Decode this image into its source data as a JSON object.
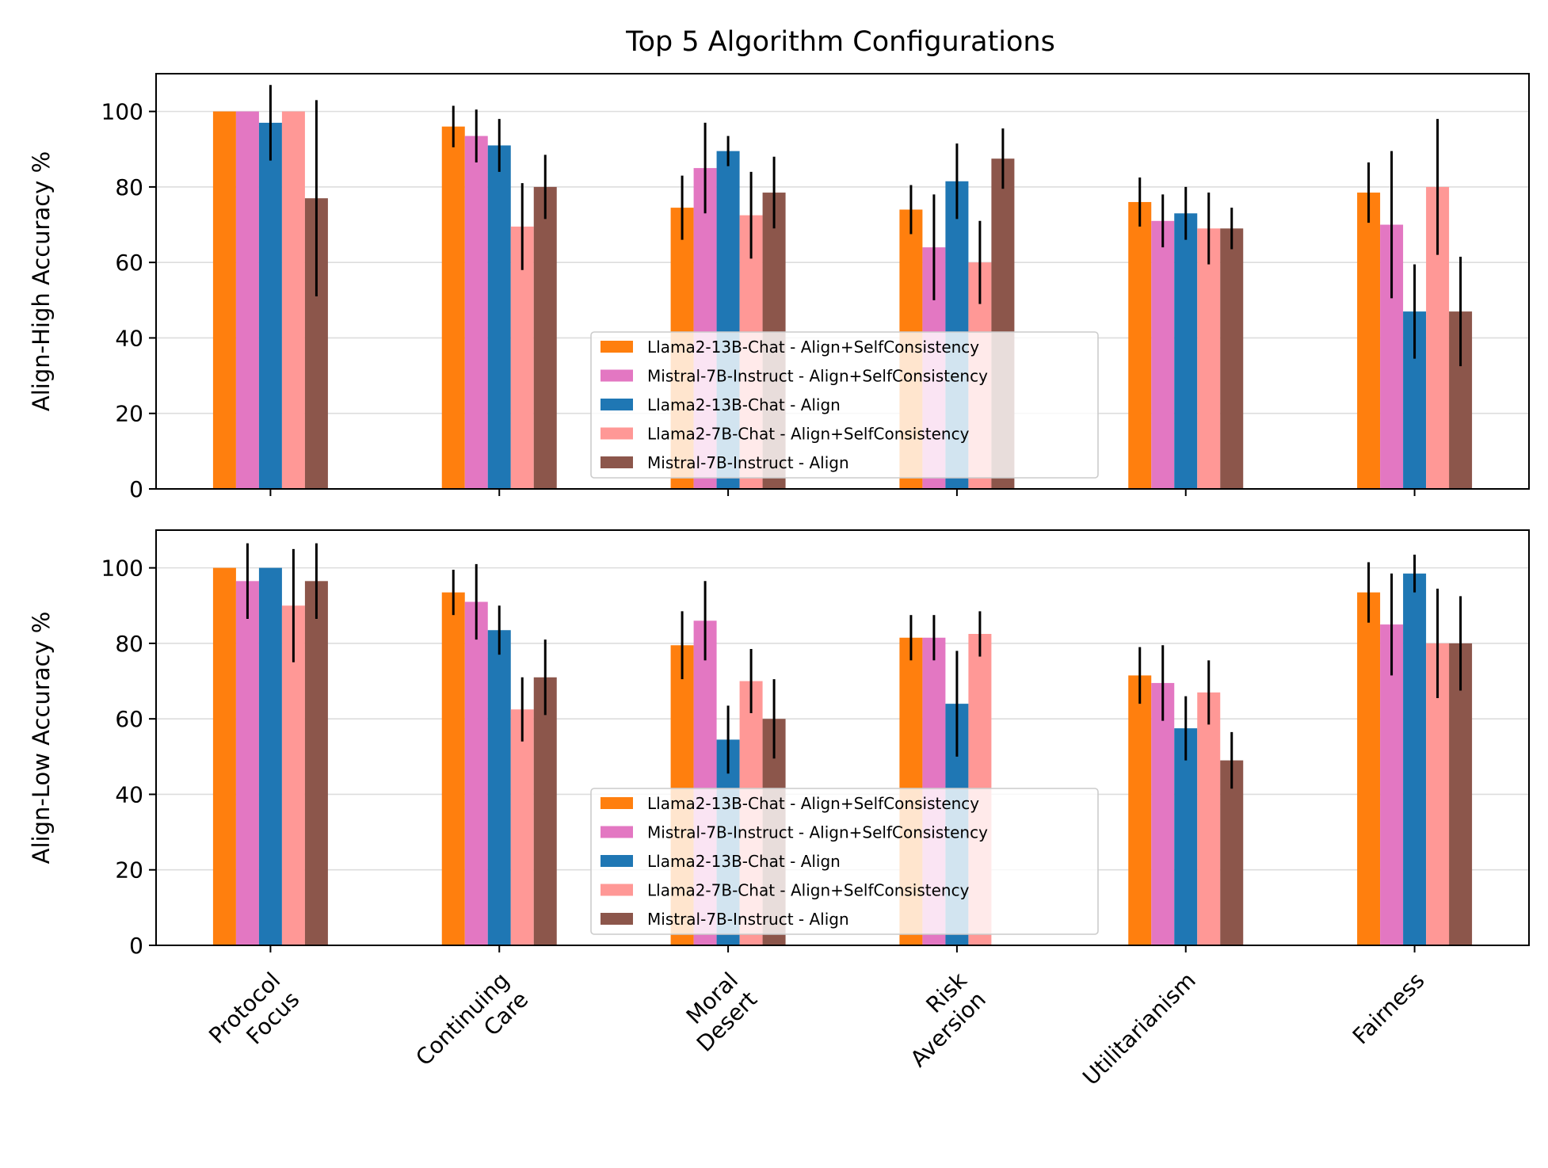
{
  "chart_data": {
    "type": "bar",
    "title": "Top 5 Algorithm Configurations",
    "categories": [
      [
        "Protocol",
        "Focus"
      ],
      [
        "Continuing",
        "Care"
      ],
      [
        "Moral",
        "Desert"
      ],
      [
        "Risk",
        "Aversion"
      ],
      [
        "Utilitarianism"
      ],
      [
        "Fairness"
      ]
    ],
    "series_style": [
      {
        "name": "Llama2-13B-Chat - Align+SelfConsistency",
        "color": "#ff7f0e"
      },
      {
        "name": "Mistral-7B-Instruct - Align+SelfConsistency",
        "color": "#e377c2"
      },
      {
        "name": "Llama2-13B-Chat - Align",
        "color": "#1f77b4"
      },
      {
        "name": "Llama2-7B-Chat - Align+SelfConsistency",
        "color": "#ff9896"
      },
      {
        "name": "Mistral-7B-Instruct - Align",
        "color": "#8c564b"
      }
    ],
    "legend_position": "lower-center",
    "grid": "y",
    "yticks": [
      0,
      20,
      40,
      60,
      80,
      100
    ],
    "panels": [
      {
        "ylabel": "Align-High Accuracy %",
        "ylim": [
          0,
          110
        ],
        "series": [
          {
            "values": [
              100,
              96,
              74.5,
              74,
              76,
              78.5
            ],
            "errors": [
              0,
              5.5,
              8.5,
              6.5,
              6.5,
              8
            ]
          },
          {
            "values": [
              100,
              93.5,
              85,
              64,
              71,
              70
            ],
            "errors": [
              0,
              7,
              12,
              14,
              7,
              19.5
            ]
          },
          {
            "values": [
              97,
              91,
              89.5,
              81.5,
              73,
              47
            ],
            "errors": [
              10,
              7,
              4,
              10,
              7,
              12.5
            ]
          },
          {
            "values": [
              100,
              69.5,
              72.5,
              60,
              69,
              80
            ],
            "errors": [
              0,
              11.5,
              11.5,
              11,
              9.5,
              18
            ]
          },
          {
            "values": [
              77,
              80,
              78.5,
              87.5,
              69,
              47
            ],
            "errors": [
              26,
              8.5,
              9.5,
              8,
              5.5,
              14.5
            ]
          }
        ]
      },
      {
        "ylabel": "Align-Low Accuracy %",
        "ylim": [
          0,
          110
        ],
        "series": [
          {
            "values": [
              100,
              93.5,
              79.5,
              81.5,
              71.5,
              93.5
            ],
            "errors": [
              0,
              6,
              9,
              6,
              7.5,
              8
            ]
          },
          {
            "values": [
              96.5,
              91,
              86,
              81.5,
              69.5,
              85
            ],
            "errors": [
              10,
              10,
              10.5,
              6,
              10,
              13.5
            ]
          },
          {
            "values": [
              100,
              83.5,
              54.5,
              64,
              57.5,
              98.5
            ],
            "errors": [
              0,
              6.5,
              9,
              14,
              8.5,
              5
            ]
          },
          {
            "values": [
              90,
              62.5,
              70,
              82.5,
              67,
              80
            ],
            "errors": [
              15,
              8.5,
              8.5,
              6,
              8.5,
              14.5
            ]
          },
          {
            "values": [
              96.5,
              71,
              60,
              0,
              49,
              80
            ],
            "errors": [
              10,
              10,
              10.5,
              0,
              7.5,
              12.5
            ]
          }
        ]
      }
    ]
  }
}
